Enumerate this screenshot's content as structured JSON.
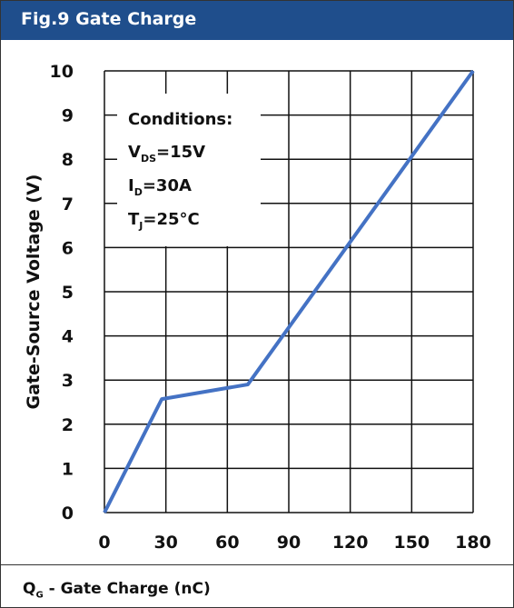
{
  "chart_data": {
    "type": "line",
    "title": "Fig.9 Gate Charge",
    "xlabel_main": "Q",
    "xlabel_sub": "G",
    "xlabel_rest": " - Gate Charge (nC)",
    "ylabel": "Gate-Source Voltage (V)",
    "xlim": [
      0,
      180
    ],
    "ylim": [
      0,
      10
    ],
    "x_ticks": [
      "0",
      "30",
      "60",
      "90",
      "120",
      "150",
      "180"
    ],
    "y_ticks": [
      "0",
      "1",
      "2",
      "3",
      "4",
      "5",
      "6",
      "7",
      "8",
      "9",
      "10"
    ],
    "grid": true,
    "series": [
      {
        "color": "#4472c4",
        "x": [
          0,
          28,
          70,
          180
        ],
        "y": [
          0,
          2.57,
          2.9,
          10
        ]
      }
    ],
    "annotation": {
      "heading": "Conditions:",
      "lines": [
        {
          "main": "V",
          "sub": "DS",
          "rest": "=15V"
        },
        {
          "main": "I",
          "sub": "D",
          "rest": "=30A"
        },
        {
          "main": "T",
          "sub": "J",
          "rest": "=25°C"
        }
      ]
    }
  }
}
